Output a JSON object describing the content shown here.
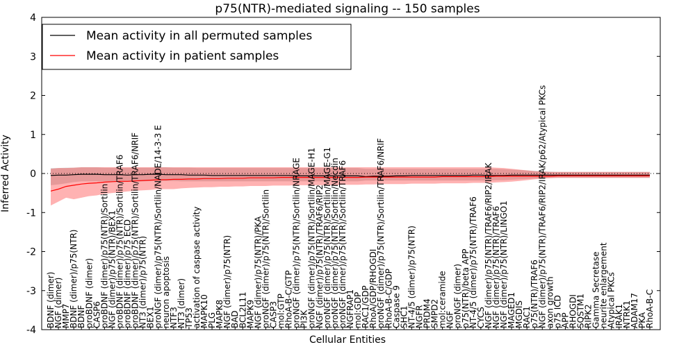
{
  "chart_data": {
    "type": "line",
    "title": "p75(NTR)-mediated signaling -- 150 samples",
    "xlabel": "Cellular Entities",
    "ylabel": "Inferred Activity",
    "ylim": [
      -4,
      4
    ],
    "yticks": [
      4,
      3,
      2,
      1,
      0,
      -1,
      -2,
      -3,
      -4
    ],
    "zero_line": "dotted",
    "legend_position": "top-left",
    "categories": [
      "BDNF (dimer)",
      "NGF (dimer)",
      "MMP7",
      "BDNF (dimer)/p75(NTR)",
      "BDNF",
      "proBDNF (dimer)",
      "CASP6",
      "proBDNF (dimer)/p75(NTR)/Sortilin",
      "NGF (dimer)/p75(NTR)/BEX1",
      "proBDNF (dimer)/p75(NTR)/Sortilin/TRAF6",
      "proBDNF (dimer)/p75 ECD",
      "proBDNF (dimer)/p75(NTR)/Sortilin/TRAF6/NRIF",
      "NT3 (dimer)/p75(NTR)",
      "BEX1",
      "proNGF (dimer)/p75(NTR)/Sortilin/NADE/14-3-3 E",
      "neuron apoptosis",
      "NTF3",
      "NT3 (dimer)",
      "TP53",
      "activation of caspase activity",
      "MAPK10",
      "PLG",
      "MAPK8",
      "NGF (dimer)/p75(NTR)",
      "BAD",
      "BCL2L11",
      "MAPK9",
      "NGF (dimer)/p75(NTR)/PKA",
      "proNGF (dimer)/p75(NTR)/Sortilin",
      "CASP3",
      "mol:GTP",
      "RhoA-B-C/GTP",
      "proNGF (dimer)/p75(NTR)/Sortilin/NRAGE",
      "PI3K",
      "proNGF (dimer)/p75(NTR)/Sortilin/MAGE-H1",
      "NGF (dimer)/p75(NTR)/TRAF6/RIP2",
      "proNGF (dimer)/p75(NTR)/Sortilin/MAGE-G1",
      "proNGF (dimer)/p75(NTR)/Sortilin/Necdin",
      "proNGF (dimer)/p75(NTR)/Sortilin/TRAF6",
      "NGFRAP1",
      "mol:GDP",
      "RAC1/GDP",
      "RhoA/GDP/RHOGDI",
      "proNGF (dimer)/p75(NTR)/Sortilin/TRAF6/NRIF",
      "RhoA-B-C/GDP",
      "Caspase 9",
      "SHC1",
      "NT-4/5 (dimer)/p75(NTR)",
      "NGFR",
      "PRDM4",
      "SMPD2",
      "mol:ceramide",
      "NGF",
      "proNGF (dimer)",
      "p75(NTR)/beta APP",
      "NT-4/5 (dimer)/p75(NTR)/TRAF6",
      "CYCS",
      "NGF (dimer)/p75(NTR)/TRAF6/RIP2/IRAK",
      "NGF (dimer)/p75(NTR)/TRAF6",
      "NGF (dimer)/p75(NTR)/LINGO1",
      "MAGED1",
      "MGDIS",
      "RAC1",
      "p75(NTR)/TRAF6",
      "NGF (dimer)/p75(NTR)/TRAF6/RIP2/IRAK/p62/Atypical PKCs",
      "axon growth",
      "p75 ICD",
      "APP",
      "RHOGDI",
      "SQSTM1",
      "RIPK2",
      "Gamma Secretase",
      "neurite enlargement",
      "Atypical PKCs",
      "IRAK1",
      "NTRK1",
      "ADAM17",
      "PKA",
      "RhoA-B-C"
    ],
    "series": [
      {
        "name": "Mean activity in all permuted samples",
        "color": "#000000",
        "values": [
          -0.05,
          -0.04,
          -0.04,
          -0.03,
          -0.02,
          -0.02,
          -0.02,
          -0.03,
          -0.03,
          -0.03,
          -0.04,
          -0.03,
          -0.03,
          -0.02,
          -0.02,
          -0.03,
          -0.03,
          -0.03,
          -0.04,
          -0.04,
          -0.04,
          -0.05,
          -0.05,
          -0.05,
          -0.05,
          -0.05,
          -0.05,
          -0.05,
          -0.05,
          -0.05,
          -0.05,
          -0.05,
          -0.06,
          -0.06,
          -0.06,
          -0.06,
          -0.06,
          -0.06,
          -0.06,
          -0.06,
          -0.06,
          -0.08,
          -0.07,
          -0.07,
          -0.07,
          -0.06,
          -0.06,
          -0.05,
          -0.05,
          -0.05,
          -0.05,
          -0.05,
          -0.05,
          -0.05,
          -0.05,
          -0.04,
          -0.04,
          -0.05,
          -0.05,
          -0.05,
          -0.04,
          -0.04,
          -0.04,
          -0.04,
          -0.04,
          -0.04,
          -0.04,
          -0.04,
          -0.04,
          -0.04,
          -0.04,
          -0.04,
          -0.04,
          -0.04,
          -0.04,
          -0.04,
          -0.04,
          -0.04,
          -0.04
        ]
      },
      {
        "name": "Mean activity in patient samples",
        "color": "#ff0000",
        "values": [
          -0.45,
          -0.4,
          -0.33,
          -0.3,
          -0.27,
          -0.25,
          -0.24,
          -0.22,
          -0.21,
          -0.2,
          -0.2,
          -0.19,
          -0.18,
          -0.17,
          -0.16,
          -0.16,
          -0.15,
          -0.15,
          -0.14,
          -0.14,
          -0.13,
          -0.13,
          -0.13,
          -0.12,
          -0.12,
          -0.12,
          -0.11,
          -0.11,
          -0.11,
          -0.11,
          -0.1,
          -0.1,
          -0.1,
          -0.1,
          -0.1,
          -0.1,
          -0.1,
          -0.1,
          -0.1,
          -0.1,
          -0.1,
          -0.09,
          -0.09,
          -0.09,
          -0.09,
          -0.09,
          -0.09,
          -0.09,
          -0.09,
          -0.09,
          -0.09,
          -0.08,
          -0.08,
          -0.08,
          -0.08,
          -0.08,
          -0.08,
          -0.08,
          -0.07,
          -0.07,
          -0.07,
          -0.07,
          -0.07,
          -0.07,
          -0.07,
          -0.07,
          -0.06,
          -0.06,
          -0.06,
          -0.06,
          -0.06,
          -0.06,
          -0.06,
          -0.06,
          -0.06,
          -0.06,
          -0.06,
          -0.06,
          -0.06
        ]
      }
    ],
    "bands": [
      {
        "name": "permuted spread",
        "color": "#bdbdbd",
        "lower": [
          -0.3,
          -0.28,
          -0.25,
          -0.22,
          -0.2,
          -0.2,
          -0.2,
          -0.2,
          -0.21,
          -0.21,
          -0.21,
          -0.21,
          -0.2,
          -0.19,
          -0.19,
          -0.19,
          -0.19,
          -0.2,
          -0.2,
          -0.2,
          -0.2,
          -0.2,
          -0.2,
          -0.2,
          -0.2,
          -0.2,
          -0.2,
          -0.2,
          -0.2,
          -0.2,
          -0.2,
          -0.2,
          -0.2,
          -0.2,
          -0.2,
          -0.2,
          -0.2,
          -0.2,
          -0.2,
          -0.2,
          -0.2,
          -0.18,
          -0.18,
          -0.18,
          -0.18,
          -0.18,
          -0.18,
          -0.18,
          -0.18,
          -0.18,
          -0.18,
          -0.18,
          -0.18,
          -0.18,
          -0.18,
          -0.18,
          -0.18,
          -0.18,
          -0.17,
          -0.17,
          -0.16,
          -0.15,
          -0.14,
          -0.13,
          -0.12,
          -0.11,
          -0.11,
          -0.11,
          -0.11,
          -0.11,
          -0.11,
          -0.11,
          -0.11,
          -0.11,
          -0.11,
          -0.11,
          -0.11,
          -0.11,
          -0.11
        ],
        "upper": [
          0.14,
          0.14,
          0.15,
          0.15,
          0.16,
          0.16,
          0.16,
          0.15,
          0.15,
          0.15,
          0.15,
          0.15,
          0.15,
          0.15,
          0.16,
          0.16,
          0.15,
          0.15,
          0.15,
          0.14,
          0.14,
          0.14,
          0.14,
          0.14,
          0.14,
          0.14,
          0.14,
          0.14,
          0.14,
          0.14,
          0.14,
          0.14,
          0.14,
          0.14,
          0.14,
          0.14,
          0.14,
          0.14,
          0.14,
          0.14,
          0.14,
          0.12,
          0.12,
          0.12,
          0.12,
          0.12,
          0.12,
          0.12,
          0.12,
          0.12,
          0.12,
          0.12,
          0.12,
          0.12,
          0.12,
          0.12,
          0.12,
          0.12,
          0.12,
          0.11,
          0.1,
          0.09,
          0.08,
          0.07,
          0.06,
          0.05,
          0.04,
          0.04,
          0.04,
          0.04,
          0.04,
          0.04,
          0.04,
          0.04,
          0.04,
          0.04,
          0.04,
          0.04,
          0.04
        ]
      },
      {
        "name": "patient spread",
        "color": "#ff0000",
        "lower": [
          -0.82,
          -0.72,
          -0.62,
          -0.66,
          -0.62,
          -0.58,
          -0.56,
          -0.52,
          -0.5,
          -0.48,
          -0.46,
          -0.44,
          -0.43,
          -0.42,
          -0.4,
          -0.4,
          -0.4,
          -0.38,
          -0.37,
          -0.36,
          -0.35,
          -0.35,
          -0.34,
          -0.34,
          -0.33,
          -0.33,
          -0.32,
          -0.32,
          -0.32,
          -0.31,
          -0.31,
          -0.31,
          -0.3,
          -0.3,
          -0.3,
          -0.3,
          -0.3,
          -0.3,
          -0.29,
          -0.29,
          -0.29,
          -0.28,
          -0.28,
          -0.27,
          -0.27,
          -0.27,
          -0.27,
          -0.26,
          -0.26,
          -0.26,
          -0.26,
          -0.25,
          -0.25,
          -0.25,
          -0.25,
          -0.24,
          -0.24,
          -0.24,
          -0.23,
          -0.22,
          -0.21,
          -0.19,
          -0.17,
          -0.15,
          -0.13,
          -0.12,
          -0.11,
          -0.11,
          -0.11,
          -0.11,
          -0.11,
          -0.11,
          -0.11,
          -0.11,
          -0.11,
          -0.11,
          -0.11,
          -0.11,
          -0.11
        ],
        "upper": [
          0.12,
          0.14,
          0.14,
          0.15,
          0.16,
          0.16,
          0.16,
          0.16,
          0.16,
          0.16,
          0.16,
          0.16,
          0.16,
          0.16,
          0.16,
          0.16,
          0.16,
          0.16,
          0.16,
          0.16,
          0.16,
          0.16,
          0.16,
          0.16,
          0.16,
          0.16,
          0.16,
          0.16,
          0.16,
          0.16,
          0.16,
          0.16,
          0.16,
          0.16,
          0.16,
          0.16,
          0.16,
          0.16,
          0.16,
          0.16,
          0.16,
          0.16,
          0.16,
          0.16,
          0.16,
          0.16,
          0.16,
          0.16,
          0.16,
          0.16,
          0.16,
          0.16,
          0.16,
          0.16,
          0.16,
          0.16,
          0.16,
          0.16,
          0.15,
          0.14,
          0.12,
          0.1,
          0.08,
          0.06,
          0.05,
          0.04,
          0.04,
          0.04,
          0.04,
          0.04,
          0.04,
          0.04,
          0.04,
          0.04,
          0.04,
          0.04,
          0.04,
          0.04,
          0.04
        ]
      }
    ]
  }
}
